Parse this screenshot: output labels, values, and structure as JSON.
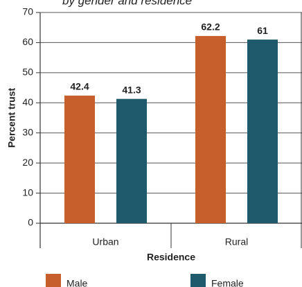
{
  "chart_data": {
    "type": "bar",
    "title": "by gender and residence",
    "categories": [
      "Urban",
      "Rural"
    ],
    "series": [
      {
        "name": "Male",
        "color": "#c65f2b",
        "values": [
          42.4,
          62.2
        ]
      },
      {
        "name": "Female",
        "color": "#1f5a6c",
        "values": [
          41.3,
          61
        ]
      }
    ],
    "x_label": "Residence",
    "y_label": "Percent trust",
    "ylim": [
      0,
      70
    ],
    "yticks": [
      0,
      10,
      20,
      30,
      40,
      50,
      60,
      70
    ],
    "grid": true,
    "legend": "bottom"
  }
}
